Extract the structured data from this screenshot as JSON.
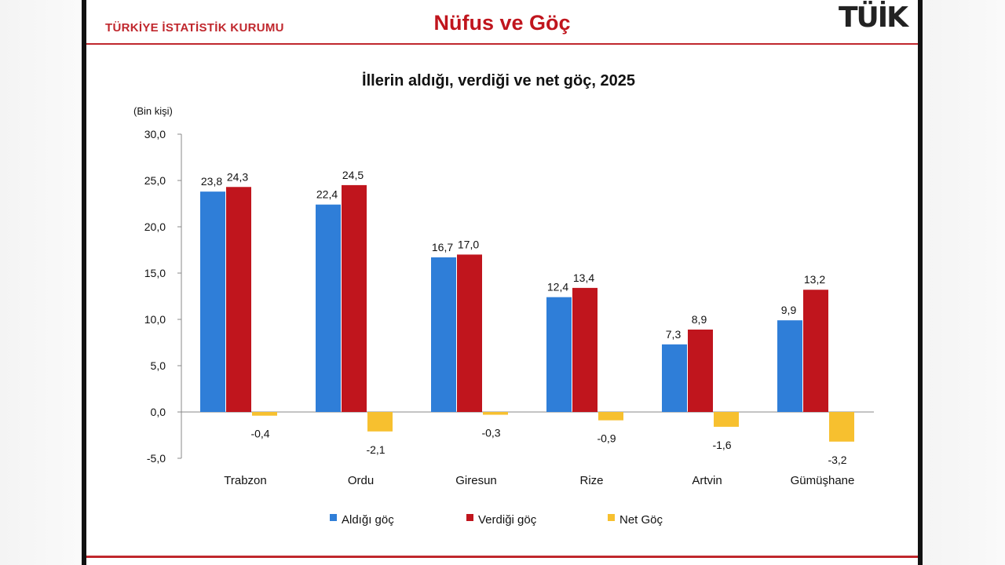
{
  "header": {
    "org": "TÜRKİYE İSTATİSTİK KURUMU",
    "title": "Nüfus ve Göç",
    "logo_text": "TÜİK"
  },
  "colors": {
    "aldigi": "#2f7ed8",
    "verdigi": "#c0151d",
    "net": "#f7c02f",
    "accent": "#c0272d"
  },
  "chart_data": {
    "type": "bar",
    "title": "İllerin aldığı, verdiği ve net göç, 2025",
    "unit_label": "(Bin kişi)",
    "categories": [
      "Trabzon",
      "Ordu",
      "Giresun",
      "Rize",
      "Artvin",
      "Gümüşhane"
    ],
    "series": [
      {
        "name": "Aldığı göç",
        "values": [
          23.8,
          22.4,
          16.7,
          12.4,
          7.3,
          9.9
        ],
        "labels": [
          "23,8",
          "22,4",
          "16,7",
          "12,4",
          "7,3",
          "9,9"
        ]
      },
      {
        "name": "Verdiği göç",
        "values": [
          24.3,
          24.5,
          17.0,
          13.4,
          8.9,
          13.2
        ],
        "labels": [
          "24,3",
          "24,5",
          "17,0",
          "13,4",
          "8,9",
          "13,2"
        ]
      },
      {
        "name": "Net Göç",
        "values": [
          -0.4,
          -2.1,
          -0.3,
          -0.9,
          -1.6,
          -3.2
        ],
        "labels": [
          "-0,4",
          "-2,1",
          "-0,3",
          "-0,9",
          "-1,6",
          "-3,2"
        ]
      }
    ],
    "ylim": [
      -5,
      30
    ],
    "yticks": [
      -5,
      0,
      5,
      10,
      15,
      20,
      25,
      30
    ],
    "ytick_labels": [
      "-5,0",
      "0,0",
      "5,0",
      "10,0",
      "15,0",
      "20,0",
      "25,0",
      "30,0"
    ],
    "grid": false,
    "legend_position": "bottom"
  }
}
